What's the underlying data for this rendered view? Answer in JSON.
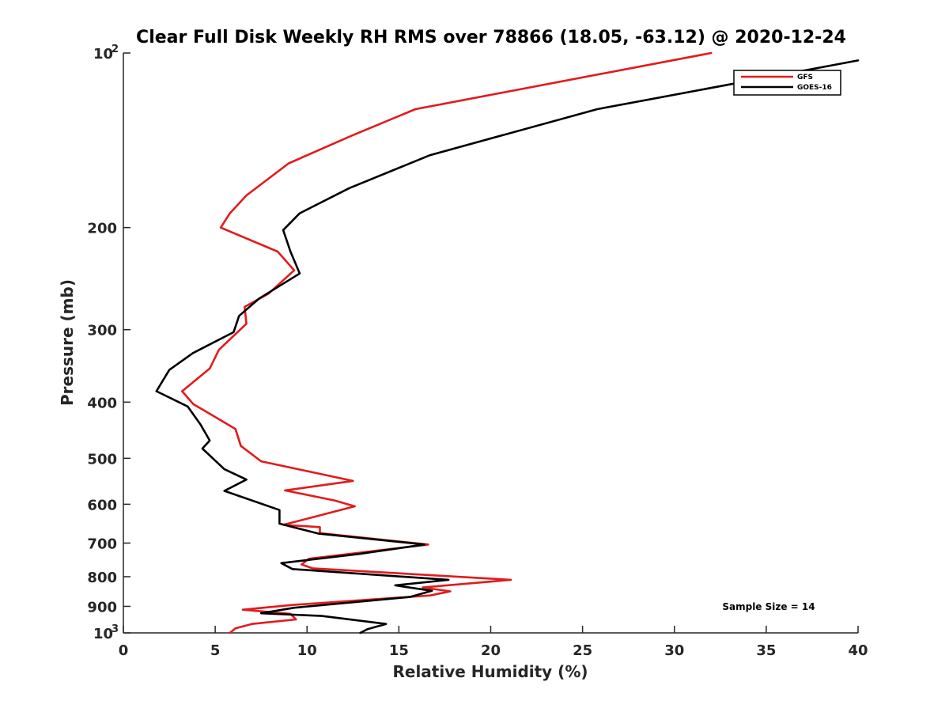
{
  "chart_data": {
    "type": "line",
    "title": "Clear Full Disk Weekly RH RMS over 78866 (18.05, -63.12) @ 2020-12-24",
    "xlabel": "Relative Humidity (%)",
    "ylabel": "Pressure (mb)",
    "xlim": [
      0,
      40
    ],
    "ylim": [
      100,
      1000
    ],
    "y_scale": "log",
    "y_reversed": true,
    "grid": false,
    "legend_position": "top-right",
    "annotation": "Sample Size = 14",
    "x_ticks": [
      "0",
      "5",
      "10",
      "15",
      "20",
      "25",
      "30",
      "35",
      "40"
    ],
    "x_tick_values": [
      0,
      5,
      10,
      15,
      20,
      25,
      30,
      35,
      40
    ],
    "y_ticks": [
      {
        "value": 100,
        "base": "10",
        "exp": "2"
      },
      {
        "value": 200,
        "label": "200"
      },
      {
        "value": 300,
        "label": "300"
      },
      {
        "value": 400,
        "label": "400"
      },
      {
        "value": 500,
        "label": "500"
      },
      {
        "value": 600,
        "label": "600"
      },
      {
        "value": 700,
        "label": "700"
      },
      {
        "value": 800,
        "label": "800"
      },
      {
        "value": 900,
        "label": "900"
      },
      {
        "value": 1000,
        "base": "10",
        "exp": "3"
      }
    ],
    "series": [
      {
        "name": "GFS",
        "color": "#e31a1c",
        "points": [
          [
            32.0,
            100
          ],
          [
            15.9,
            125
          ],
          [
            12.4,
            139
          ],
          [
            9.0,
            155
          ],
          [
            6.7,
            176
          ],
          [
            5.8,
            189
          ],
          [
            5.3,
            200
          ],
          [
            8.4,
            220
          ],
          [
            9.3,
            237
          ],
          [
            7.9,
            260
          ],
          [
            6.6,
            274
          ],
          [
            6.7,
            293
          ],
          [
            5.2,
            325
          ],
          [
            4.7,
            350
          ],
          [
            3.2,
            383
          ],
          [
            3.8,
            403
          ],
          [
            6.1,
            445
          ],
          [
            6.4,
            476
          ],
          [
            7.5,
            506
          ],
          [
            12.5,
            547
          ],
          [
            8.8,
            568
          ],
          [
            11.5,
            591
          ],
          [
            12.6,
            605
          ],
          [
            10.3,
            632
          ],
          [
            8.7,
            651
          ],
          [
            10.7,
            657
          ],
          [
            10.7,
            673
          ],
          [
            16.6,
            704
          ],
          [
            10.1,
            745
          ],
          [
            9.7,
            762
          ],
          [
            10.3,
            774
          ],
          [
            21.1,
            810
          ],
          [
            16.3,
            835
          ],
          [
            17.8,
            848
          ],
          [
            16.7,
            862
          ],
          [
            9.2,
            895
          ],
          [
            6.5,
            912
          ],
          [
            9.1,
            927
          ],
          [
            9.4,
            948
          ],
          [
            7.0,
            965
          ],
          [
            6.1,
            982
          ],
          [
            5.8,
            1000
          ]
        ]
      },
      {
        "name": "GOES-16",
        "color": "#000000",
        "points": [
          [
            40.0,
            103
          ],
          [
            25.8,
            125
          ],
          [
            16.7,
            150
          ],
          [
            12.3,
            171
          ],
          [
            9.6,
            189
          ],
          [
            8.7,
            202
          ],
          [
            9.1,
            220
          ],
          [
            9.6,
            240
          ],
          [
            7.4,
            265
          ],
          [
            6.3,
            284
          ],
          [
            6.0,
            303
          ],
          [
            3.8,
            329
          ],
          [
            2.5,
            352
          ],
          [
            1.8,
            383
          ],
          [
            3.5,
            407
          ],
          [
            4.2,
            437
          ],
          [
            4.7,
            466
          ],
          [
            4.3,
            481
          ],
          [
            5.5,
            522
          ],
          [
            6.7,
            544
          ],
          [
            5.5,
            569
          ],
          [
            8.5,
            614
          ],
          [
            8.5,
            648
          ],
          [
            10.6,
            674
          ],
          [
            16.4,
            704
          ],
          [
            12.8,
            731
          ],
          [
            8.6,
            758
          ],
          [
            9.2,
            776
          ],
          [
            17.7,
            810
          ],
          [
            14.8,
            828
          ],
          [
            16.8,
            846
          ],
          [
            15.6,
            867
          ],
          [
            9.3,
            905
          ],
          [
            7.5,
            925
          ],
          [
            10.8,
            935
          ],
          [
            14.3,
            965
          ],
          [
            13.3,
            985
          ],
          [
            12.9,
            1000
          ]
        ]
      }
    ]
  }
}
